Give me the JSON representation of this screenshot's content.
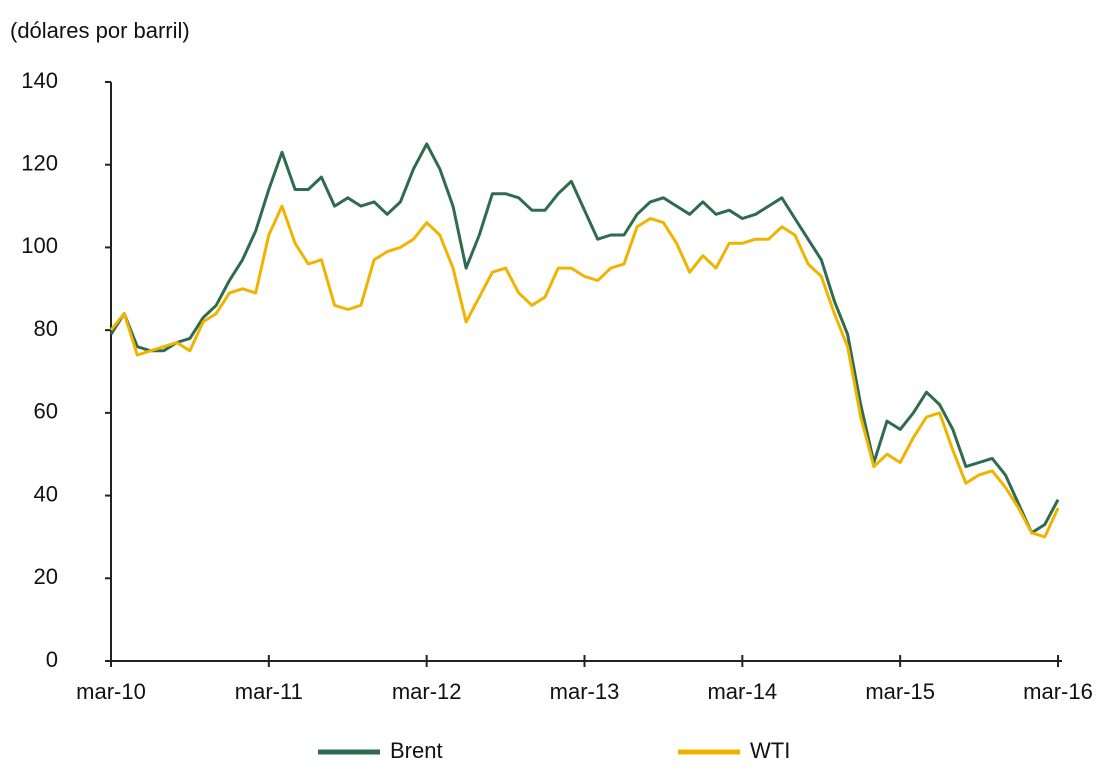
{
  "chart_data": {
    "type": "line",
    "y_label": "(dólares por barril)",
    "x": [
      "2010-03",
      "2010-04",
      "2010-05",
      "2010-06",
      "2010-07",
      "2010-08",
      "2010-09",
      "2010-10",
      "2010-11",
      "2010-12",
      "2011-01",
      "2011-02",
      "2011-03",
      "2011-04",
      "2011-05",
      "2011-06",
      "2011-07",
      "2011-08",
      "2011-09",
      "2011-10",
      "2011-11",
      "2011-12",
      "2012-01",
      "2012-02",
      "2012-03",
      "2012-04",
      "2012-05",
      "2012-06",
      "2012-07",
      "2012-08",
      "2012-09",
      "2012-10",
      "2012-11",
      "2012-12",
      "2013-01",
      "2013-02",
      "2013-03",
      "2013-04",
      "2013-05",
      "2013-06",
      "2013-07",
      "2013-08",
      "2013-09",
      "2013-10",
      "2013-11",
      "2013-12",
      "2014-01",
      "2014-02",
      "2014-03",
      "2014-04",
      "2014-05",
      "2014-06",
      "2014-07",
      "2014-08",
      "2014-09",
      "2014-10",
      "2014-11",
      "2014-12",
      "2015-01",
      "2015-02",
      "2015-03",
      "2015-04",
      "2015-05",
      "2015-06",
      "2015-07",
      "2015-08",
      "2015-09",
      "2015-10",
      "2015-11",
      "2015-12",
      "2016-01",
      "2016-02",
      "2016-03"
    ],
    "series": [
      {
        "name": "Brent",
        "color": "#2e6b4f",
        "values": [
          79,
          84,
          76,
          75,
          75,
          77,
          78,
          83,
          86,
          92,
          97,
          104,
          114,
          123,
          114,
          114,
          117,
          110,
          112,
          110,
          111,
          108,
          111,
          119,
          125,
          119,
          110,
          95,
          103,
          113,
          113,
          112,
          109,
          109,
          113,
          116,
          109,
          102,
          103,
          103,
          108,
          111,
          112,
          110,
          108,
          111,
          108,
          109,
          107,
          108,
          110,
          112,
          107,
          102,
          97,
          87,
          79,
          62,
          48,
          58,
          56,
          60,
          65,
          62,
          56,
          47,
          48,
          49,
          45,
          38,
          31,
          33,
          39
        ]
      },
      {
        "name": "WTI",
        "color": "#f0b400",
        "values": [
          80,
          84,
          74,
          75,
          76,
          77,
          75,
          82,
          84,
          89,
          90,
          89,
          103,
          110,
          101,
          96,
          97,
          86,
          85,
          86,
          97,
          99,
          100,
          102,
          106,
          103,
          95,
          82,
          88,
          94,
          95,
          89,
          86,
          88,
          95,
          95,
          93,
          92,
          95,
          96,
          105,
          107,
          106,
          101,
          94,
          98,
          95,
          101,
          101,
          102,
          102,
          105,
          103,
          96,
          93,
          84,
          76,
          59,
          47,
          50,
          48,
          54,
          59,
          60,
          51,
          43,
          45,
          46,
          42,
          37,
          31,
          30,
          37
        ]
      }
    ],
    "xlim": [
      "2010-03",
      "2016-03"
    ],
    "xticks": [
      {
        "value": "2010-03",
        "label": "mar-10"
      },
      {
        "value": "2011-03",
        "label": "mar-11"
      },
      {
        "value": "2012-03",
        "label": "mar-12"
      },
      {
        "value": "2013-03",
        "label": "mar-13"
      },
      {
        "value": "2014-03",
        "label": "mar-14"
      },
      {
        "value": "2015-03",
        "label": "mar-15"
      },
      {
        "value": "2016-03",
        "label": "mar-16"
      }
    ],
    "ylim": [
      0,
      140
    ],
    "yticks": [
      0,
      20,
      40,
      60,
      80,
      100,
      120,
      140
    ],
    "grid": false,
    "legend": "bottom"
  }
}
